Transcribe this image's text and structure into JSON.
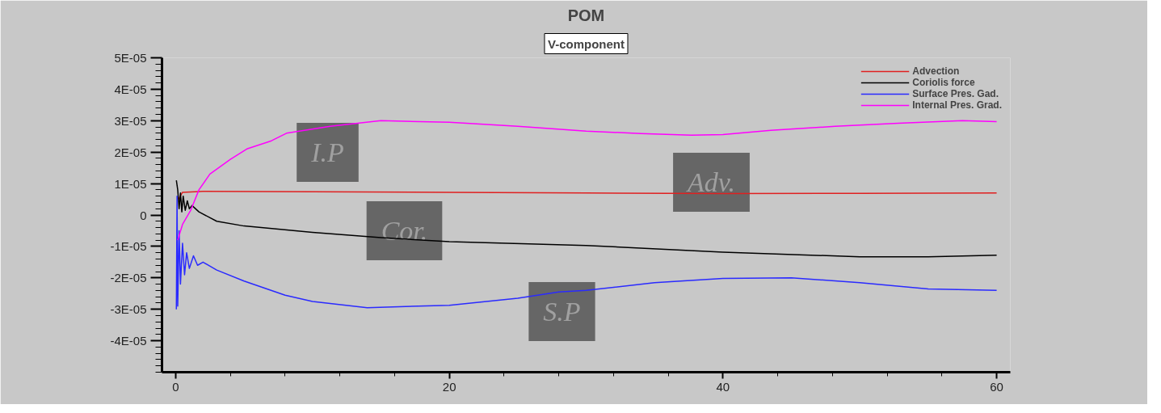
{
  "chart_data": {
    "type": "line",
    "title": "POM",
    "subtitle": "V-component",
    "xlim": [
      -1,
      61
    ],
    "ylim": [
      -5e-05,
      5e-05
    ],
    "xticks": [
      0,
      {
        "value": 4,
        "label": null
      },
      {
        "value": 8,
        "label": null
      },
      {
        "value": 12,
        "label": null
      },
      {
        "value": 16,
        "label": null
      },
      20,
      {
        "value": 24,
        "label": null
      },
      {
        "value": 28,
        "label": null
      },
      {
        "value": 32,
        "label": null
      },
      {
        "value": 36,
        "label": null
      },
      40,
      {
        "value": 44,
        "label": null
      },
      {
        "value": 48,
        "label": null
      },
      {
        "value": 52,
        "label": null
      },
      {
        "value": 56,
        "label": null
      },
      60
    ],
    "yticks": [
      {
        "value": -5e-05,
        "label": null
      },
      {
        "value": -4.8e-05,
        "label": null
      },
      {
        "value": -4.6e-05,
        "label": null
      },
      {
        "value": -4.4e-05,
        "label": null
      },
      {
        "value": -4.2e-05,
        "label": null
      },
      {
        "value": -4e-05,
        "label": "-4E-05"
      },
      {
        "value": -3.8e-05,
        "label": null
      },
      {
        "value": -3.6e-05,
        "label": null
      },
      {
        "value": -3.4e-05,
        "label": null
      },
      {
        "value": -3.2e-05,
        "label": null
      },
      {
        "value": -3e-05,
        "label": "-3E-05"
      },
      {
        "value": -2.8e-05,
        "label": null
      },
      {
        "value": -2.6e-05,
        "label": null
      },
      {
        "value": -2.4e-05,
        "label": null
      },
      {
        "value": -2.2e-05,
        "label": null
      },
      {
        "value": -2e-05,
        "label": "-2E-05"
      },
      {
        "value": -1.8e-05,
        "label": null
      },
      {
        "value": -1.6e-05,
        "label": null
      },
      {
        "value": -1.4e-05,
        "label": null
      },
      {
        "value": -1.2e-05,
        "label": null
      },
      {
        "value": -1e-05,
        "label": "-1E-05"
      },
      {
        "value": -8e-06,
        "label": null
      },
      {
        "value": -6e-06,
        "label": null
      },
      {
        "value": -4e-06,
        "label": null
      },
      {
        "value": -2e-06,
        "label": null
      },
      0,
      {
        "value": 2e-06,
        "label": null
      },
      {
        "value": 4e-06,
        "label": null
      },
      {
        "value": 6e-06,
        "label": null
      },
      {
        "value": 8e-06,
        "label": null
      },
      {
        "value": 1e-05,
        "label": "1E-05"
      },
      {
        "value": 1.2e-05,
        "label": null
      },
      {
        "value": 1.4e-05,
        "label": null
      },
      {
        "value": 1.6e-05,
        "label": null
      },
      {
        "value": 1.8e-05,
        "label": null
      },
      {
        "value": 2e-05,
        "label": "2E-05"
      },
      {
        "value": 2.2e-05,
        "label": null
      },
      {
        "value": 2.4e-05,
        "label": null
      },
      {
        "value": 2.6e-05,
        "label": null
      },
      {
        "value": 2.8e-05,
        "label": null
      },
      {
        "value": 3e-05,
        "label": "3E-05"
      },
      {
        "value": 3.2e-05,
        "label": null
      },
      {
        "value": 3.4e-05,
        "label": null
      },
      {
        "value": 3.6e-05,
        "label": null
      },
      {
        "value": 3.8e-05,
        "label": null
      },
      {
        "value": 4e-05,
        "label": "4E-05"
      },
      {
        "value": 4.2e-05,
        "label": null
      },
      {
        "value": 4.4e-05,
        "label": null
      },
      {
        "value": 4.6e-05,
        "label": null
      },
      {
        "value": 4.8e-05,
        "label": null
      },
      {
        "value": 5e-05,
        "label": "5E-05"
      }
    ],
    "grid": false,
    "legend": "top right",
    "line_style": "solid",
    "series": [
      {
        "name": "Advection",
        "color": "#e02020",
        "x": [
          0.2,
          0.5,
          2,
          10,
          20,
          30,
          40,
          50,
          60
        ],
        "values": [
          5e-06,
          7.2e-06,
          7.5e-06,
          7.4e-06,
          7.2e-06,
          7e-06,
          6.8e-06,
          6.9e-06,
          7e-06
        ]
      },
      {
        "name": "Coriolis force",
        "color": "#000000",
        "x": [
          0.05,
          0.15,
          0.25,
          0.35,
          0.45,
          0.55,
          0.7,
          0.85,
          1.0,
          1.2,
          1.7,
          3,
          5,
          10,
          15,
          20,
          30,
          40,
          50,
          55,
          60
        ],
        "values": [
          1.1e-05,
          8e-06,
          2e-06,
          7e-06,
          1e-06,
          6e-06,
          1.5e-06,
          4.5e-06,
          2e-06,
          3e-06,
          1e-06,
          -2e-06,
          -3.5e-06,
          -5.5e-06,
          -7.2e-06,
          -8.5e-06,
          -9.7e-06,
          -1.18e-05,
          -1.33e-05,
          -1.33e-05,
          -1.28e-05
        ]
      },
      {
        "name": "Surface Pres. Gad.",
        "color": "#2a2aff",
        "x": [
          0.05,
          0.1,
          0.15,
          0.25,
          0.35,
          0.5,
          0.65,
          0.8,
          1.0,
          1.3,
          1.6,
          2,
          3,
          5,
          8,
          10,
          14,
          20,
          25,
          28,
          30,
          35,
          40,
          45,
          50,
          55,
          60
        ],
        "values": [
          -3e-05,
          6e-06,
          -2.9e-05,
          -5e-06,
          -2.2e-05,
          -9e-06,
          -1.9e-05,
          -1.2e-05,
          -1.7e-05,
          -1.3e-05,
          -1.6e-05,
          -1.5e-05,
          -1.75e-05,
          -2.1e-05,
          -2.55e-05,
          -2.75e-05,
          -2.95e-05,
          -2.87e-05,
          -2.65e-05,
          -2.45e-05,
          -2.4e-05,
          -2.15e-05,
          -2.02e-05,
          -2e-05,
          -2.15e-05,
          -2.35e-05,
          -2.4e-05
        ]
      },
      {
        "name": "Internal Pres. Grad.",
        "color": "#ff00ff",
        "x": [
          0.15,
          0.5,
          1.1,
          1.7,
          2.5,
          4,
          5.2,
          7,
          8.1,
          11.3,
          15,
          20,
          25,
          30,
          34,
          37.7,
          40,
          43.5,
          48.2,
          52.8,
          57.5,
          60
        ],
        "values": [
          -8e-06,
          -3e-06,
          1.5e-06,
          8e-06,
          1.3e-05,
          1.77e-05,
          2.1e-05,
          2.36e-05,
          2.6e-05,
          2.82e-05,
          3e-05,
          2.95e-05,
          2.82e-05,
          2.67e-05,
          2.59e-05,
          2.54e-05,
          2.56e-05,
          2.69e-05,
          2.82e-05,
          2.92e-05,
          3e-05,
          2.97e-05
        ]
      }
    ],
    "annotations": [
      "I.P",
      "Cor.",
      "Adv.",
      "S.P"
    ]
  }
}
